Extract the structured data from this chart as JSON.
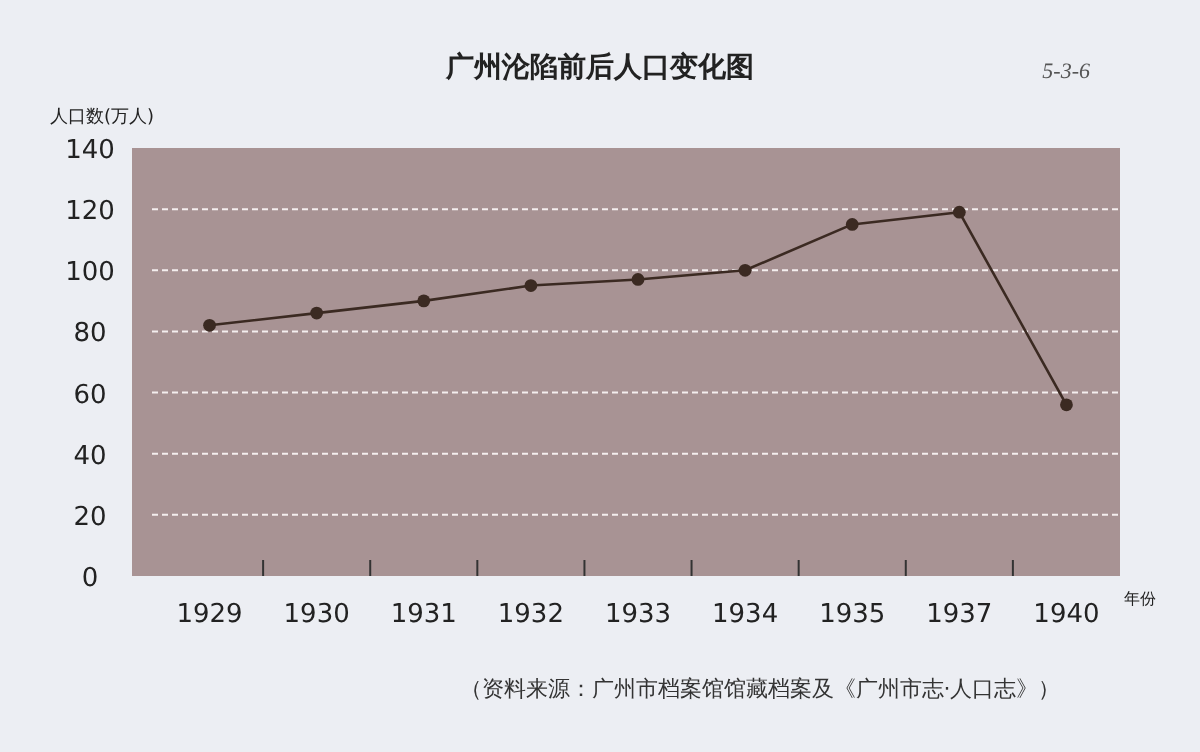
{
  "chart_data": {
    "type": "line",
    "title": "广州沦陷前后人口变化图",
    "ylabel": "人口数(万人)",
    "xlabel": "年份",
    "annotations": [
      "5-3-6",
      "（资料来源：广州市档案馆馆藏档案及《广州市志·人口志》）"
    ],
    "categories": [
      "1929",
      "1930",
      "1931",
      "1932",
      "1933",
      "1934",
      "1935",
      "1937",
      "1940"
    ],
    "series": [
      {
        "color": "#3b2a22",
        "values": [
          82,
          86,
          90,
          95,
          97,
          100,
          115,
          119,
          56
        ]
      }
    ],
    "ylim": [
      0,
      140
    ],
    "yticks": [
      0,
      20,
      40,
      60,
      80,
      100,
      120,
      140
    ],
    "grid": "y",
    "marker": "circle",
    "line_style": "solid"
  }
}
